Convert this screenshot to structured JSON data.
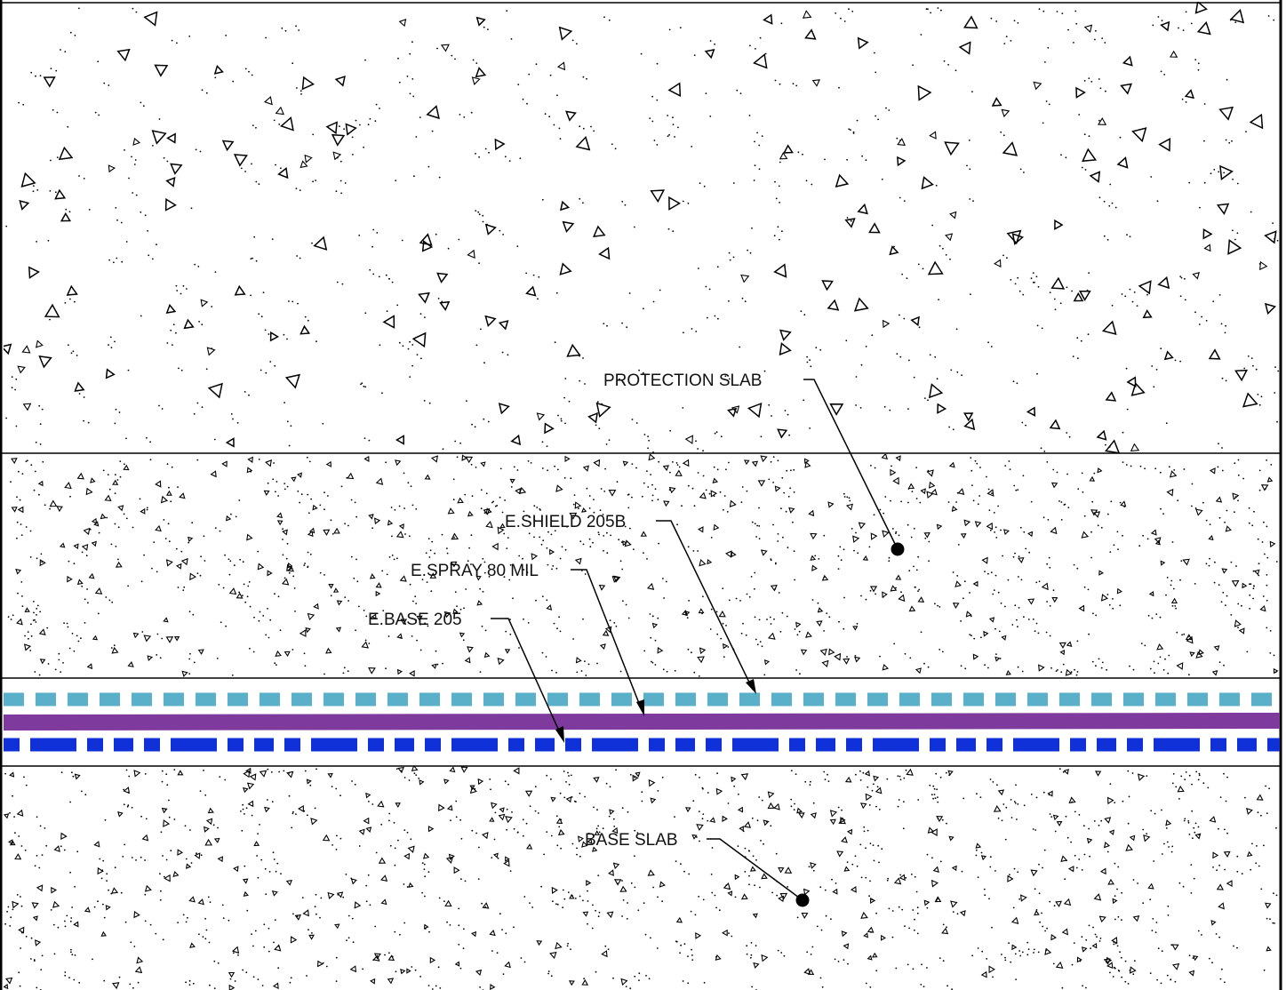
{
  "colors": {
    "e_shield_205b": "#5ab0c8",
    "e_spray_80_mil": "#7e3a9c",
    "e_base_205": "#1131d8",
    "linework": "#000000"
  },
  "layers": [
    {
      "id": "protection_slab",
      "label": "PROTECTION SLAB"
    },
    {
      "id": "e_shield_205b",
      "label": "E.SHIELD 205B"
    },
    {
      "id": "e_spray_80_mil",
      "label": "E.SPRAY 80 MIL"
    },
    {
      "id": "e_base_205",
      "label": "E.BASE 205"
    },
    {
      "id": "base_slab",
      "label": "BASE SLAB"
    }
  ]
}
